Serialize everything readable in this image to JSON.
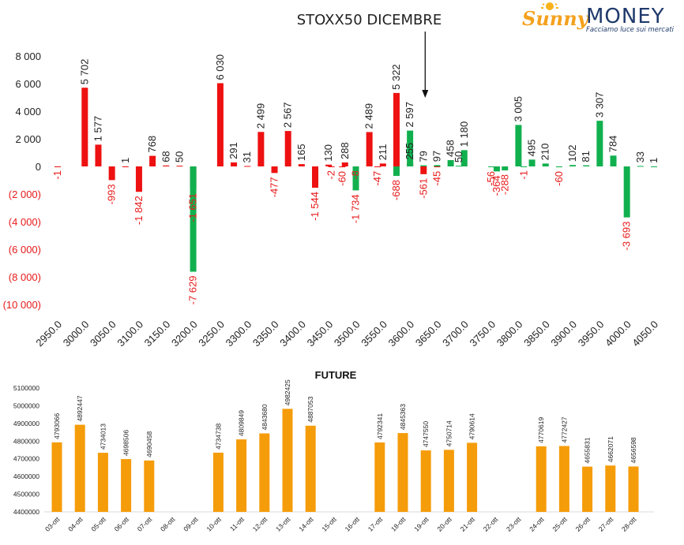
{
  "logo": {
    "brand_script": "Sunny",
    "brand_word": "MONEY",
    "tagline": "Facciamo luce sui mercati",
    "colors": {
      "script": "#f4a11d",
      "word": "#1f3a6b",
      "sun": "#f7b21b"
    }
  },
  "colors": {
    "negative": "#ee1111",
    "positive": "#11b04f",
    "neg_label": "#e81a1a",
    "pos_label": "#222222",
    "future_bar": "#f59c0a"
  },
  "chart_data": [
    {
      "type": "bar",
      "title": "STOXX50 DICEMBRE",
      "xlabel": "",
      "ylabel": "",
      "ylim": [
        -10000,
        8000
      ],
      "yticks": [
        8000,
        6000,
        4000,
        2000,
        0,
        -2000,
        -4000,
        -6000,
        -8000,
        -10000
      ],
      "ytick_labels": [
        "8 000",
        "6 000",
        "4 000",
        "2 000",
        "0",
        "(2 000)",
        "(4 000)",
        "(6 000)",
        "(8 000)",
        "(10 000)"
      ],
      "xtick_labels": [
        "2950.0",
        "3000.0",
        "3050.0",
        "3100.0",
        "3150.0",
        "3200.0",
        "3250.0",
        "3300.0",
        "3350.0",
        "3400.0",
        "3450.0",
        "3500.0",
        "3550.0",
        "3600.0",
        "3650.0",
        "3700.0",
        "3750.0",
        "3800.0",
        "3850.0",
        "3900.0",
        "3950.0",
        "4000.0",
        "4050.0"
      ],
      "annotation": {
        "text": "arrow",
        "strike": "3625.0"
      },
      "series": [
        {
          "values": [
            {
              "strike": "2950.0",
              "value": -1,
              "label": "-1"
            },
            {
              "strike": "3000.0",
              "value": 5702,
              "label": "5 702"
            },
            {
              "strike": "3025.0",
              "value": 1577,
              "label": "1 577"
            },
            {
              "strike": "3050.0",
              "value": -993,
              "label": "-993"
            },
            {
              "strike": "3075.0",
              "value": 1,
              "label": "1"
            },
            {
              "strike": "3100.0",
              "value": -1842,
              "label": "-1 842"
            },
            {
              "strike": "3125.0",
              "value": 768,
              "label": "768"
            },
            {
              "strike": "3150.0",
              "value": 68,
              "label": "68"
            },
            {
              "strike": "3175.0",
              "value": 50,
              "label": "50"
            },
            {
              "strike": "3200.0",
              "value": -1651,
              "label": "-1 651"
            },
            {
              "strike": "3250.0",
              "value": 6030,
              "label": "6 030"
            },
            {
              "strike": "3275.0",
              "value": 291,
              "label": "291"
            },
            {
              "strike": "3300.0",
              "value": 31,
              "label": "31"
            },
            {
              "strike": "3325.0",
              "value": 2499,
              "label": "2 499"
            },
            {
              "strike": "3350.0",
              "value": -477,
              "label": "-477"
            },
            {
              "strike": "3375.0",
              "value": 2567,
              "label": "2 567"
            },
            {
              "strike": "3400.0",
              "value": 165,
              "label": "165"
            },
            {
              "strike": "3425.0",
              "value": -1544,
              "label": "-1 544"
            },
            {
              "strike": "3450.0",
              "value": 130,
              "label": "130"
            },
            {
              "strike": "3455.0",
              "value": -2,
              "label": "-2"
            },
            {
              "strike": "3475.0",
              "value": -60,
              "label": "-60"
            },
            {
              "strike": "3480.0",
              "value": 288,
              "label": "288"
            },
            {
              "strike": "3500.0",
              "value": -8,
              "label": "-8"
            },
            {
              "strike": "3525.0",
              "value": 2489,
              "label": "2 489"
            },
            {
              "strike": "3540.0",
              "value": -47,
              "label": "-47"
            },
            {
              "strike": "3550.0",
              "value": 211,
              "label": "211"
            },
            {
              "strike": "3575.0",
              "value": 5322,
              "label": "5 322"
            },
            {
              "strike": "3600.0",
              "value": 255,
              "label": "255"
            },
            {
              "strike": "3625.0",
              "value": -561,
              "label": "-561"
            },
            {
              "strike": "3650.0",
              "value": -45,
              "label": "-45"
            }
          ]
        },
        {
          "values": [
            {
              "strike": "3200.0",
              "value": -7629,
              "label": "-7 629"
            },
            {
              "strike": "3500.0",
              "value": -1734,
              "label": "-1 734"
            },
            {
              "strike": "3575.0",
              "value": -688,
              "label": "-688"
            },
            {
              "strike": "3600.0",
              "value": 2597,
              "label": "2 597"
            },
            {
              "strike": "3625.0",
              "value": 79,
              "label": "79"
            },
            {
              "strike": "3650.0",
              "value": 97,
              "label": "97"
            },
            {
              "strike": "3675.0",
              "value": 458,
              "label": "458"
            },
            {
              "strike": "3690.0",
              "value": 50,
              "label": "50"
            },
            {
              "strike": "3700.0",
              "value": 1180,
              "label": "1 180"
            },
            {
              "strike": "3750.0",
              "value": -56,
              "label": "-56"
            },
            {
              "strike": "3760.0",
              "value": -364,
              "label": "-364"
            },
            {
              "strike": "3775.0",
              "value": -288,
              "label": "-288"
            },
            {
              "strike": "3800.0",
              "value": 3005,
              "label": "3 005"
            },
            {
              "strike": "3810.0",
              "value": -1,
              "label": "-1"
            },
            {
              "strike": "3825.0",
              "value": 495,
              "label": "495"
            },
            {
              "strike": "3850.0",
              "value": 210,
              "label": "210"
            },
            {
              "strike": "3875.0",
              "value": -60,
              "label": "-60"
            },
            {
              "strike": "3900.0",
              "value": 102,
              "label": "102"
            },
            {
              "strike": "3925.0",
              "value": 81,
              "label": "81"
            },
            {
              "strike": "3950.0",
              "value": 3307,
              "label": "3 307"
            },
            {
              "strike": "3975.0",
              "value": 784,
              "label": "784"
            },
            {
              "strike": "4000.0",
              "value": -3693,
              "label": "-3 693"
            },
            {
              "strike": "4025.0",
              "value": 33,
              "label": "33"
            },
            {
              "strike": "4050.0",
              "value": 1,
              "label": "1"
            }
          ]
        }
      ]
    },
    {
      "type": "bar",
      "title": "FUTURE",
      "xlabel": "",
      "ylabel": "",
      "ylim": [
        4400000,
        5100000
      ],
      "yticks": [
        5100000,
        5000000,
        4900000,
        4800000,
        4700000,
        4600000,
        4500000,
        4400000
      ],
      "ytick_labels": [
        "5100000",
        "5000000",
        "4900000",
        "4800000",
        "4700000",
        "4600000",
        "4500000",
        "4400000"
      ],
      "categories": [
        "03-ott",
        "04-ott",
        "05-ott",
        "06-ott",
        "07-ott",
        "08-ott",
        "09-ott",
        "10-ott",
        "11-ott",
        "12-ott",
        "13-ott",
        "14-ott",
        "15-ott",
        "16-ott",
        "17-ott",
        "18-ott",
        "19-ott",
        "20-ott",
        "21-ott",
        "22-ott",
        "23-ott",
        "24-ott",
        "25-ott",
        "26-ott",
        "27-ott",
        "28-ott"
      ],
      "values": [
        4793066,
        4892447,
        4734013,
        4698506,
        4690458,
        null,
        null,
        4734738,
        4809849,
        4843680,
        4982425,
        4887053,
        null,
        null,
        4792341,
        4845363,
        4747550,
        4750714,
        4790614,
        null,
        null,
        4770619,
        4772427,
        4655831,
        4662071,
        4656598
      ]
    }
  ]
}
